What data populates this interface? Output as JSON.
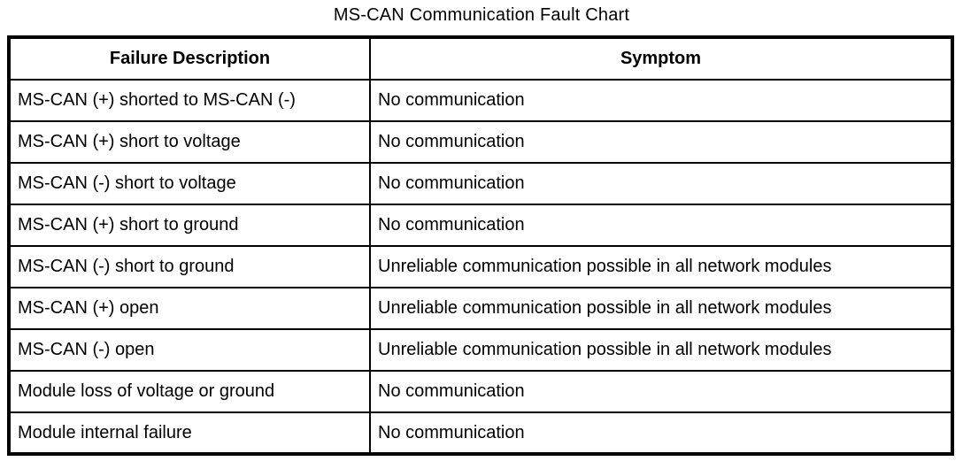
{
  "title": "MS-CAN Communication Fault Chart",
  "table": {
    "headers": [
      "Failure Description",
      "Symptom"
    ],
    "rows": [
      {
        "failure": "MS-CAN (+) shorted to MS-CAN (-)",
        "symptom": "No communication"
      },
      {
        "failure": "MS-CAN (+) short to voltage",
        "symptom": "No communication"
      },
      {
        "failure": "MS-CAN (-) short to voltage",
        "symptom": "No communication"
      },
      {
        "failure": "MS-CAN (+) short to ground",
        "symptom": "No communication"
      },
      {
        "failure": "MS-CAN (-) short to ground",
        "symptom": "Unreliable communication possible in all network modules"
      },
      {
        "failure": "MS-CAN (+) open",
        "symptom": "Unreliable communication possible in all network modules"
      },
      {
        "failure": "MS-CAN (-) open",
        "symptom": "Unreliable communication possible in all network modules"
      },
      {
        "failure": "Module loss of voltage or ground",
        "symptom": "No communication"
      },
      {
        "failure": "Module internal failure",
        "symptom": "No communication"
      }
    ]
  },
  "colors": {
    "border": "#000000",
    "background": "#ffffff",
    "text": "#000000"
  }
}
